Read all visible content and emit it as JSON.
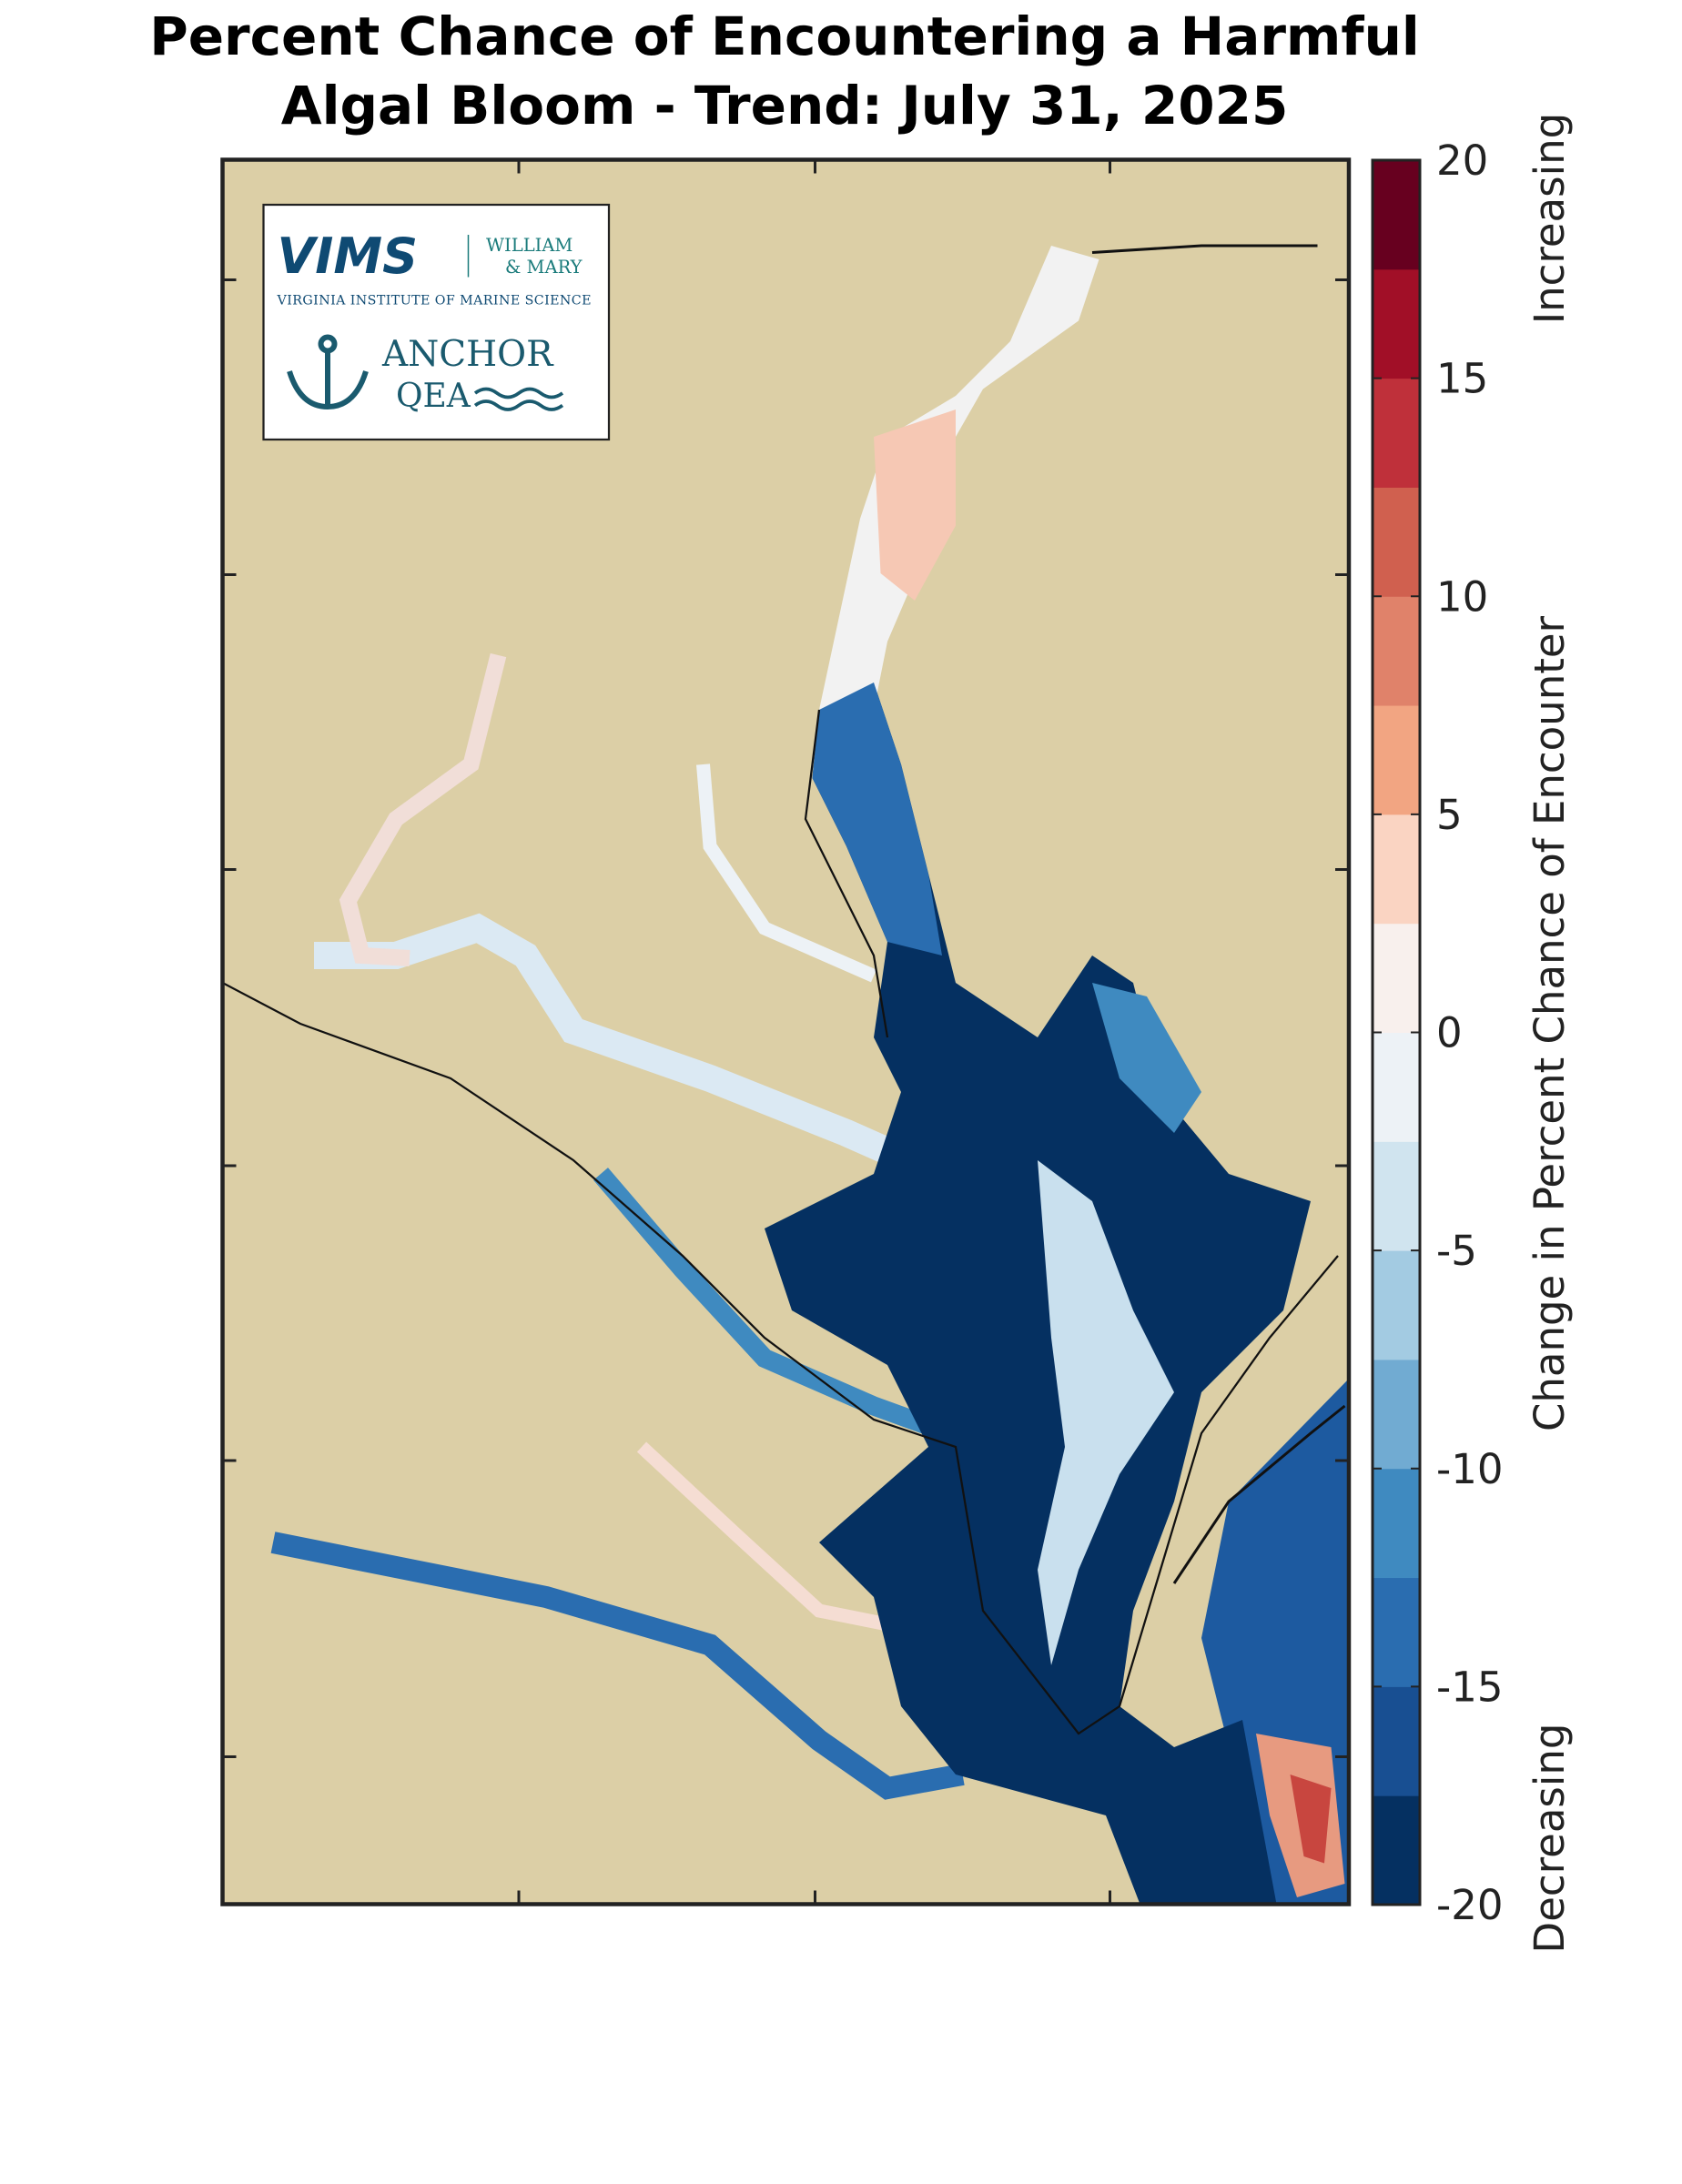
{
  "title": [
    "Percent Chance of Encountering a Harmful",
    "Algal Bloom - Trend: July 31, 2025"
  ],
  "logo": {
    "vims": "VIMS",
    "william": "WILLIAM",
    "mary": "& MARY",
    "institute": "VIRGINIA INSTITUTE OF MARINE SCIENCE",
    "anchor": "ANCHOR",
    "qea": "QEA"
  },
  "colorbar": {
    "label": "Change in Percent Chance of Encounter",
    "top_label": "Increasing",
    "bottom_label": "Decreasing",
    "lim": [
      -20,
      20
    ],
    "ticks": [
      -20,
      -15,
      -10,
      -5,
      0,
      5,
      10,
      15,
      20
    ],
    "colors": [
      "#053061",
      "#184f92",
      "#2a6db0",
      "#3f8ac0",
      "#71abd2",
      "#a3cbe2",
      "#d0e4ef",
      "#edf2f6",
      "#f8f0ed",
      "#fad4c2",
      "#f2a582",
      "#e0826a",
      "#d0604f",
      "#bf303a",
      "#a10f27",
      "#67001f"
    ]
  }
}
